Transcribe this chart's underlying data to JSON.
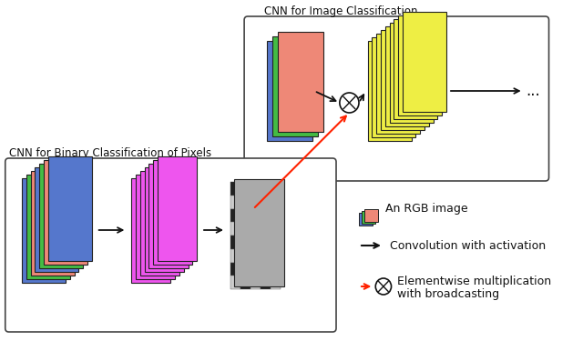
{
  "title_top": "CNN for Image Classification",
  "title_bottom": "CNN for Binary Classification of Pixels",
  "legend_rgb": "An RGB image",
  "legend_conv": "Convolution with activation",
  "legend_elem1": "Elementwise multiplication",
  "legend_elem2": "with broadcasting",
  "dots_text": "...",
  "bg_color": "#ffffff",
  "box_edge": "#444444",
  "arrow_color": "#111111",
  "red_color": "#ff2200",
  "blue_layer": "#5577cc",
  "green_layer": "#44bb44",
  "salmon_layer": "#ee8877",
  "yellow_layer": "#eeee44",
  "magenta_layer": "#ee55ee",
  "checker_dark": "#222222",
  "checker_light": "#cccccc",
  "checker_mid": "#888888"
}
